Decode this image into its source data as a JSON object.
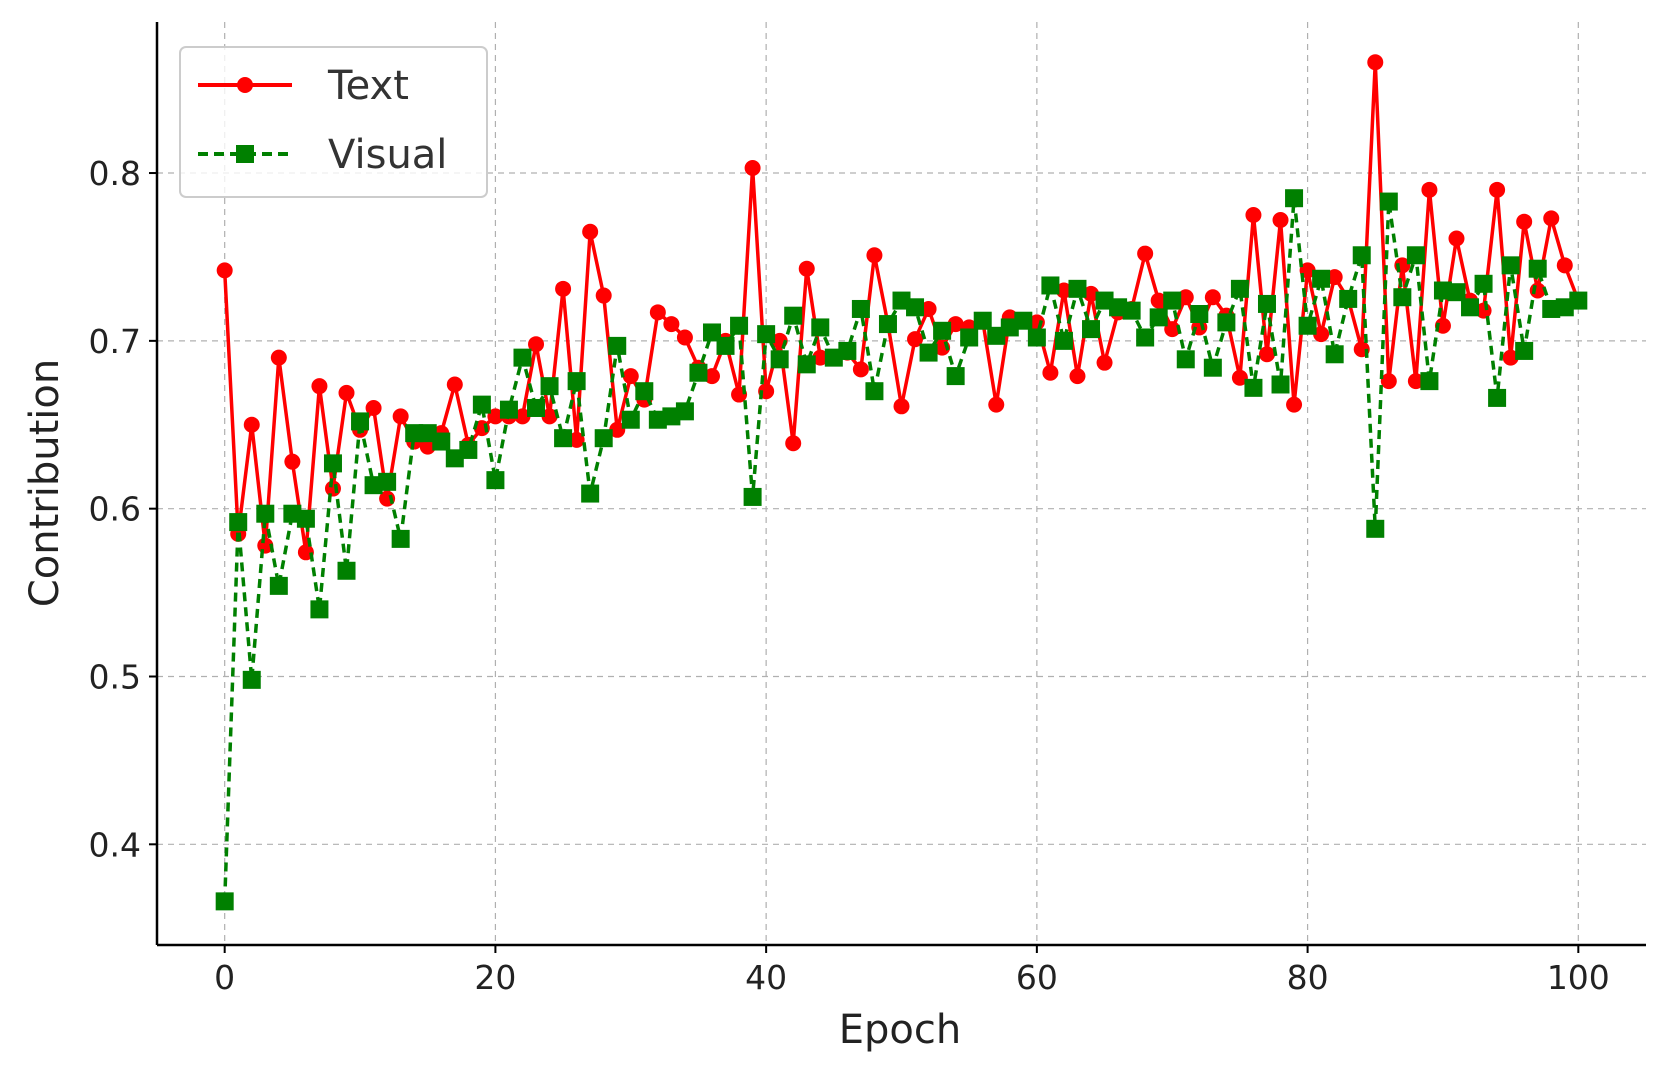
{
  "chart_data": {
    "type": "line",
    "xlabel": "Epoch",
    "ylabel": "Contribution",
    "xlim": [
      -5,
      105
    ],
    "ylim": [
      0.34,
      0.89
    ],
    "xticks": [
      0,
      20,
      40,
      60,
      80,
      100
    ],
    "yticks": [
      0.4,
      0.5,
      0.6,
      0.7,
      0.8
    ],
    "xtick_labels": [
      "0",
      "20",
      "40",
      "60",
      "80",
      "100"
    ],
    "ytick_labels": [
      "0.4",
      "0.5",
      "0.6",
      "0.7",
      "0.8"
    ],
    "grid": true,
    "legend_position": "top-left",
    "x": [
      0,
      1,
      2,
      3,
      4,
      5,
      6,
      7,
      8,
      9,
      10,
      11,
      12,
      13,
      14,
      15,
      16,
      17,
      18,
      19,
      20,
      21,
      22,
      23,
      24,
      25,
      26,
      27,
      28,
      29,
      30,
      31,
      32,
      33,
      34,
      35,
      36,
      37,
      38,
      39,
      40,
      41,
      42,
      43,
      44,
      45,
      46,
      47,
      48,
      49,
      50,
      51,
      52,
      53,
      54,
      55,
      56,
      57,
      58,
      59,
      60,
      61,
      62,
      63,
      64,
      65,
      66,
      67,
      68,
      69,
      70,
      71,
      72,
      73,
      74,
      75,
      76,
      77,
      78,
      79,
      80,
      81,
      82,
      83,
      84,
      85,
      86,
      87,
      88,
      89,
      90,
      91,
      92,
      93,
      94,
      95,
      96,
      97,
      98,
      99,
      100
    ],
    "series": [
      {
        "name": "Text",
        "color": "#ff0000",
        "linestyle": "solid",
        "marker": "circle",
        "values": [
          0.742,
          0.585,
          0.65,
          0.578,
          0.69,
          0.628,
          0.574,
          0.673,
          0.612,
          0.669,
          0.647,
          0.66,
          0.606,
          0.655,
          0.64,
          0.637,
          0.645,
          0.674,
          0.638,
          0.648,
          0.655,
          0.655,
          0.655,
          0.698,
          0.655,
          0.731,
          0.641,
          0.765,
          0.727,
          0.647,
          0.679,
          0.665,
          0.717,
          0.71,
          0.702,
          0.684,
          0.679,
          0.7,
          0.668,
          0.803,
          0.67,
          0.7,
          0.639,
          0.743,
          0.69,
          0.69,
          0.693,
          0.683,
          0.751,
          0.71,
          0.661,
          0.701,
          0.719,
          0.696,
          0.71,
          0.708,
          0.712,
          0.662,
          0.714,
          0.712,
          0.711,
          0.681,
          0.73,
          0.679,
          0.728,
          0.687,
          0.717,
          0.719,
          0.752,
          0.724,
          0.707,
          0.726,
          0.708,
          0.726,
          0.715,
          0.678,
          0.775,
          0.692,
          0.772,
          0.662,
          0.742,
          0.704,
          0.738,
          0.725,
          0.695,
          0.866,
          0.676,
          0.745,
          0.676,
          0.79,
          0.709,
          0.761,
          0.724,
          0.718,
          0.79,
          0.69,
          0.771,
          0.73,
          0.773,
          0.745,
          0.724
        ]
      },
      {
        "name": "Visual",
        "color": "#008000",
        "linestyle": "dashed",
        "marker": "square",
        "values": [
          0.366,
          0.592,
          0.498,
          0.597,
          0.554,
          0.597,
          0.594,
          0.54,
          0.627,
          0.563,
          0.652,
          0.614,
          0.616,
          0.582,
          0.645,
          0.645,
          0.64,
          0.63,
          0.635,
          0.662,
          0.617,
          0.659,
          0.69,
          0.66,
          0.673,
          0.642,
          0.676,
          0.609,
          0.642,
          0.697,
          0.653,
          0.67,
          0.653,
          0.655,
          0.658,
          0.681,
          0.705,
          0.697,
          0.709,
          0.607,
          0.704,
          0.689,
          0.715,
          0.686,
          0.708,
          0.69,
          0.694,
          0.719,
          0.67,
          0.71,
          0.724,
          0.72,
          0.693,
          0.706,
          0.679,
          0.702,
          0.712,
          0.703,
          0.708,
          0.712,
          0.702,
          0.733,
          0.7,
          0.731,
          0.707,
          0.724,
          0.72,
          0.718,
          0.702,
          0.714,
          0.724,
          0.689,
          0.716,
          0.684,
          0.711,
          0.731,
          0.672,
          0.722,
          0.674,
          0.785,
          0.709,
          0.737,
          0.692,
          0.725,
          0.751,
          0.588,
          0.783,
          0.726,
          0.751,
          0.676,
          0.73,
          0.729,
          0.72,
          0.734,
          0.666,
          0.745,
          0.694,
          0.743,
          0.719,
          0.72,
          0.724
        ]
      }
    ]
  }
}
